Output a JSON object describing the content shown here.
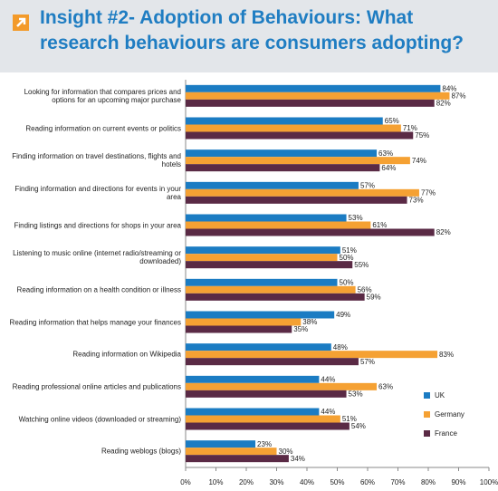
{
  "chart_data": {
    "type": "bar",
    "orientation": "horizontal",
    "title": "Insight #2- Adoption of Behaviours: What research behaviours are consumers adopting?",
    "categories": [
      "Looking for information that compares prices and options for an upcoming major purchase",
      "Reading information on current events or politics",
      "Finding information on travel destinations, flights and hotels",
      "Finding information and directions for events in your area",
      "Finding listings and directions for shops in your area",
      "Listening to music online (internet radio/streaming or downloaded)",
      "Reading information on a health condition or illness",
      "Reading information that helps manage your finances",
      "Reading information on Wikipedia",
      "Reading professional online articles and publications",
      "Watching online videos (downloaded or streaming)",
      "Reading weblogs (blogs)"
    ],
    "series": [
      {
        "name": "UK",
        "color": "#1b7cc3",
        "values": [
          84,
          65,
          63,
          57,
          53,
          51,
          50,
          49,
          48,
          44,
          44,
          23
        ],
        "value_labels": [
          "84%",
          "65%",
          "63%",
          "57%",
          "53%",
          "51%",
          "50%",
          "49%",
          "48%",
          "44%",
          "44%",
          "23%"
        ]
      },
      {
        "name": "Germany",
        "color": "#f5a133",
        "values": [
          87,
          71,
          74,
          77,
          61,
          50,
          56,
          38,
          83,
          63,
          51,
          30
        ],
        "value_labels": [
          "87%",
          "71%",
          "74%",
          "77%",
          "61%",
          "50%",
          "56%",
          "38%",
          "83%",
          "63%",
          "51%",
          "30%"
        ]
      },
      {
        "name": "France",
        "color": "#5a2a45",
        "values": [
          82,
          75,
          64,
          73,
          82,
          55,
          59,
          35,
          57,
          53,
          54,
          34
        ],
        "value_labels": [
          "82%",
          "75%",
          "64%",
          "73%",
          "82%",
          "55%",
          "59%",
          "35%",
          "57%",
          "53%",
          "54%",
          "34%"
        ]
      }
    ],
    "xlim": [
      0,
      100
    ],
    "xticks": [
      {
        "value": 0,
        "label": "0%"
      },
      {
        "value": 10,
        "label": "10%"
      },
      {
        "value": 20,
        "label": "20%"
      },
      {
        "value": 30,
        "label": "30%"
      },
      {
        "value": 40,
        "label": "40%"
      },
      {
        "value": 50,
        "label": "50%"
      },
      {
        "value": 60,
        "label": "60%"
      },
      {
        "value": 70,
        "label": "70%"
      },
      {
        "value": 80,
        "label": "80%"
      },
      {
        "value": 90,
        "label": "90%"
      },
      {
        "value": 100,
        "label": "100%"
      }
    ],
    "legend": "lower right"
  }
}
